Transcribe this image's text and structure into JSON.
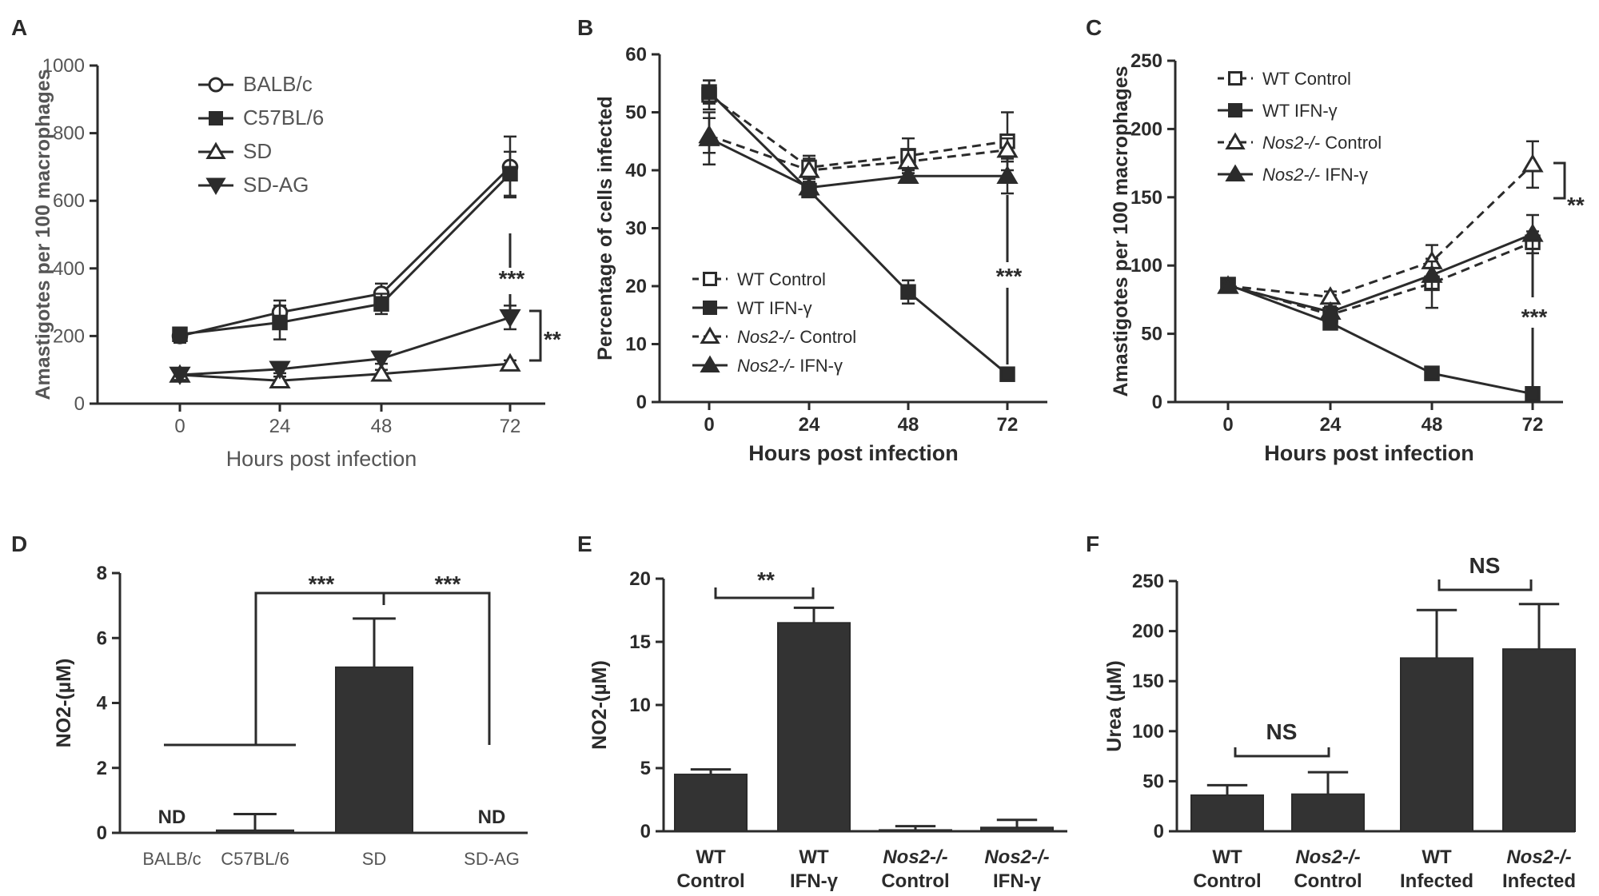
{
  "figure": {
    "panel_count": 6
  },
  "chart_data": [
    {
      "panel": "A",
      "type": "line",
      "title": "",
      "xlabel": "Hours post infection",
      "ylabel": "Amastigotes per 100 macrophages",
      "x": [
        0,
        24,
        48,
        72
      ],
      "xticks": [
        "0",
        "24",
        "48",
        "72"
      ],
      "ylim": [
        0,
        1000
      ],
      "yticks": [
        "0",
        "200",
        "400",
        "600",
        "800",
        "1000"
      ],
      "series": [
        {
          "name": "BALB/c",
          "marker": "circle-open",
          "dash": false,
          "values": [
            200,
            270,
            325,
            700
          ],
          "errors": [
            20,
            35,
            30,
            90
          ]
        },
        {
          "name": "C57BL/6",
          "marker": "square-filled",
          "dash": false,
          "values": [
            205,
            240,
            295,
            680
          ],
          "errors": [
            20,
            50,
            30,
            65
          ]
        },
        {
          "name": "SD",
          "marker": "triangle-open",
          "dash": false,
          "values": [
            85,
            68,
            88,
            118
          ],
          "errors": [
            15,
            12,
            12,
            10
          ]
        },
        {
          "name": "SD-AG",
          "marker": "triangle-down-filled",
          "dash": false,
          "values": [
            85,
            102,
            133,
            255
          ],
          "errors": [
            15,
            12,
            15,
            35
          ]
        }
      ],
      "annotations": [
        "***",
        "**"
      ]
    },
    {
      "panel": "B",
      "type": "line",
      "title": "",
      "xlabel": "Hours post infection",
      "ylabel": "Percentage of cells infected",
      "x": [
        0,
        24,
        48,
        72
      ],
      "xticks": [
        "0",
        "24",
        "48",
        "72"
      ],
      "ylim": [
        0,
        60
      ],
      "yticks": [
        "0",
        "10",
        "20",
        "30",
        "40",
        "50",
        "60"
      ],
      "series": [
        {
          "name": "WT Control",
          "marker": "square-open",
          "dash": true,
          "values": [
            53,
            40.5,
            42.5,
            45
          ],
          "errors": [
            2.5,
            2,
            3,
            5
          ]
        },
        {
          "name": "WT IFN-γ",
          "marker": "square-filled",
          "dash": false,
          "values": [
            53.5,
            36.5,
            19,
            4.8
          ],
          "errors": [
            2,
            1,
            2,
            1
          ]
        },
        {
          "name": "Nos2-/- Control",
          "marker": "triangle-open",
          "dash": true,
          "values": [
            46,
            40,
            41.5,
            43.5
          ],
          "errors": [
            3,
            2,
            2,
            2
          ]
        },
        {
          "name": "Nos2-/- IFN-γ",
          "marker": "triangle-filled",
          "dash": false,
          "values": [
            45.5,
            37,
            39,
            39
          ],
          "errors": [
            4.5,
            1,
            1,
            3
          ]
        }
      ],
      "annotations": [
        "***"
      ]
    },
    {
      "panel": "C",
      "type": "line",
      "title": "",
      "xlabel": "Hours post infection",
      "ylabel": "Amastigotes per 100 macrophages",
      "x": [
        0,
        24,
        48,
        72
      ],
      "xticks": [
        "0",
        "24",
        "48",
        "72"
      ],
      "ylim": [
        0,
        250
      ],
      "yticks": [
        "0",
        "50",
        "100",
        "150",
        "200",
        "250"
      ],
      "series": [
        {
          "name": "WT Control",
          "marker": "square-open",
          "dash": true,
          "values": [
            86,
            64,
            87,
            117
          ],
          "errors": [
            4,
            6,
            18,
            8
          ]
        },
        {
          "name": "WT IFN-γ",
          "marker": "square-filled",
          "dash": false,
          "values": [
            86,
            58,
            21,
            6
          ],
          "errors": [
            3,
            3,
            2,
            1
          ]
        },
        {
          "name": "Nos2-/- Control",
          "marker": "triangle-open",
          "dash": true,
          "values": [
            85,
            77,
            103,
            174
          ],
          "errors": [
            3,
            4,
            12,
            17
          ]
        },
        {
          "name": "Nos2-/- IFN-γ",
          "marker": "triangle-filled",
          "dash": false,
          "values": [
            85,
            66,
            93,
            123
          ],
          "errors": [
            3,
            4,
            10,
            14
          ]
        }
      ],
      "annotations": [
        "**",
        "***"
      ]
    },
    {
      "panel": "D",
      "type": "bar",
      "title": "",
      "xlabel": "",
      "ylabel": "NO2-(µM)",
      "categories": [
        "BALB/c",
        "C57BL/6",
        "SD",
        "SD-AG"
      ],
      "values": [
        0,
        0.08,
        5.1,
        0
      ],
      "errors": [
        0,
        0.5,
        1.5,
        0
      ],
      "bar_labels": [
        "ND",
        "",
        "",
        "ND"
      ],
      "ylim": [
        0,
        8
      ],
      "yticks": [
        "0",
        "2",
        "4",
        "6",
        "8"
      ],
      "annotations": [
        "***",
        "***"
      ]
    },
    {
      "panel": "E",
      "type": "bar",
      "title": "",
      "xlabel": "",
      "ylabel": "NO2-(µM)",
      "categories": [
        [
          "WT",
          "Control"
        ],
        [
          "WT",
          "IFN-γ"
        ],
        [
          "Nos2-/-",
          "Control"
        ],
        [
          "Nos2-/-",
          "IFN-γ"
        ]
      ],
      "values": [
        4.5,
        16.5,
        0.1,
        0.3
      ],
      "errors": [
        0.4,
        1.2,
        0.3,
        0.6
      ],
      "ylim": [
        0,
        20
      ],
      "yticks": [
        "0",
        "5",
        "10",
        "15",
        "20"
      ],
      "annotations": [
        "**"
      ]
    },
    {
      "panel": "F",
      "type": "bar",
      "title": "",
      "xlabel": "",
      "ylabel": "Urea (µM)",
      "categories": [
        [
          "WT",
          "Control"
        ],
        [
          "Nos2-/-",
          "Control"
        ],
        [
          "WT",
          "Infected"
        ],
        [
          "Nos2-/-",
          "Infected"
        ]
      ],
      "values": [
        36,
        37,
        173,
        182
      ],
      "errors": [
        10,
        22,
        48,
        45
      ],
      "ylim": [
        0,
        250
      ],
      "yticks": [
        "0",
        "50",
        "100",
        "150",
        "200",
        "250"
      ],
      "annotations": [
        "NS",
        "NS"
      ]
    }
  ]
}
